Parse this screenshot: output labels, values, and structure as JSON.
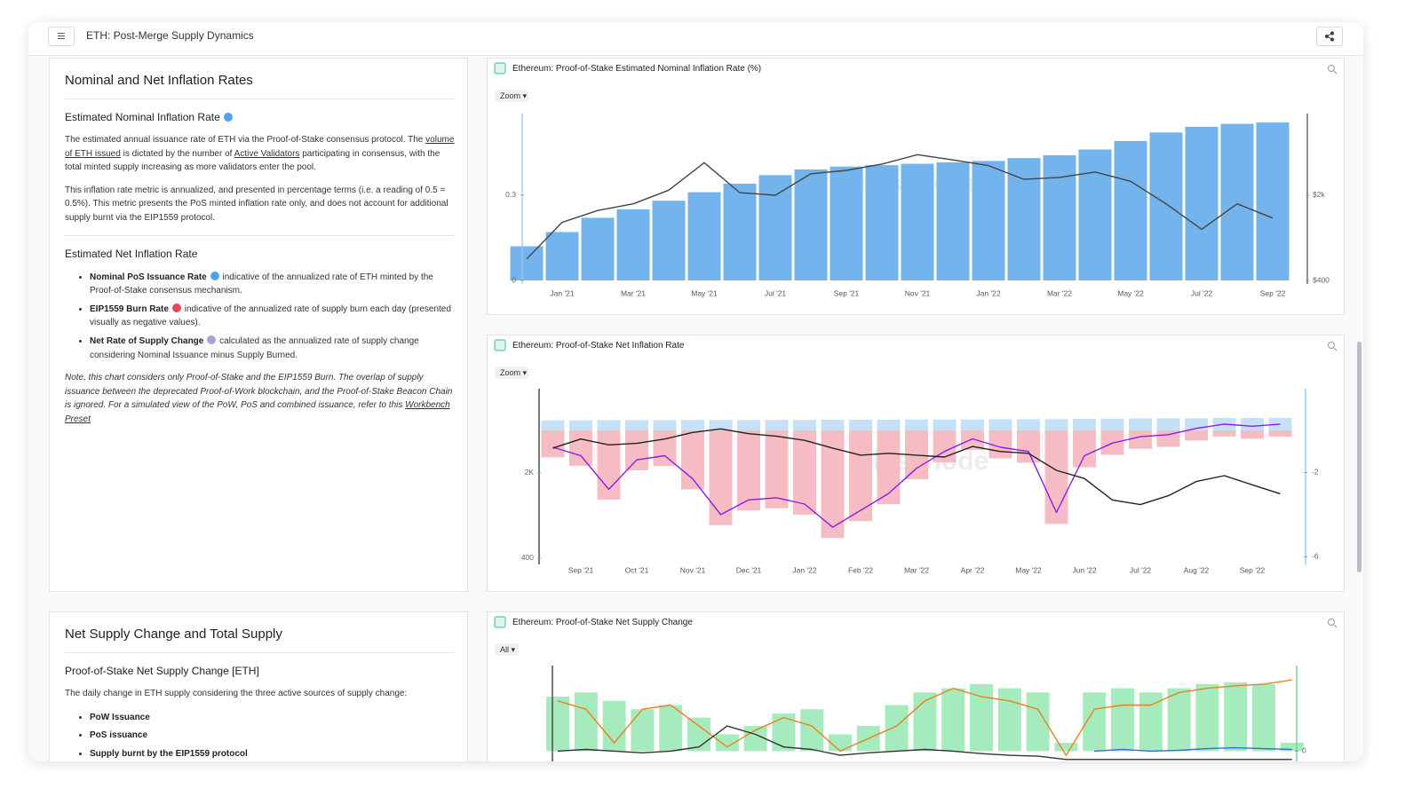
{
  "header": {
    "title": "ETH: Post-Merge Supply Dynamics"
  },
  "panels": [
    {
      "title": "Nominal and Net Inflation Rates",
      "blocks": [
        {
          "heading": "Estimated Nominal Inflation Rate",
          "dot": "#4ea4ee"
        },
        {
          "paragraph": [
            "The estimated annual issuance rate of ETH via the Proof-of-Stake consensus protocol. The ",
            {
              "text": "volume of ETH issued",
              "link": true
            },
            " is dictated by the number of ",
            {
              "text": "Active Validators",
              "link": true
            },
            " participating in consensus, with the total minted supply increasing as more validators enter the pool."
          ]
        },
        {
          "paragraph": [
            "This inflation rate metric is annualized, and presented in percentage terms (i.e. a reading of 0.5 = 0.5%). This metric presents the PoS minted inflation rate only, and does not account for additional supply burnt via the EIP1559 protocol."
          ]
        },
        {
          "heading": "Estimated Net Inflation Rate"
        },
        {
          "list": [
            {
              "label": "Nominal PoS Issuance Rate",
              "dot": "#4ea4ee",
              "text": " indicative of the annualized rate of ETH minted by the Proof-of-Stake consensus mechanism."
            },
            {
              "label": "EIP1559 Burn Rate",
              "dot": "#e8465a",
              "text": " indicative of the annualized rate of supply burn each day (presented visually as negative values)."
            },
            {
              "label": "Net Rate of Supply Change",
              "dot": "#b39ddb",
              "text": " calculated as the annualized rate of supply change considering Nominal Issuance minus Supply Burned."
            }
          ]
        },
        {
          "note": [
            "Note, this chart considers only Proof-of-Stake and the EIP1559 Burn. The overlap of supply issuance between the deprecated Proof-of-Work blockchain, and the Proof-of-Stake Beacon Chain is ignored. For a simulated view of the PoW, PoS and combined issuance, refer to this ",
            {
              "text": "Workbench Preset",
              "link": true
            }
          ]
        }
      ]
    },
    {
      "title": "Net Supply Change and Total Supply",
      "blocks": [
        {
          "heading": "Proof-of-Stake Net Supply Change [ETH]"
        },
        {
          "paragraph": [
            "The daily change in ETH supply considering the three active sources of supply change:"
          ]
        },
        {
          "list": [
            {
              "label": "PoW Issuance"
            },
            {
              "label": "PoS issuance"
            },
            {
              "label": "Supply burnt by the EIP1559 protocol"
            }
          ]
        }
      ]
    }
  ],
  "chart_data": [
    {
      "type": "combo",
      "title": "Ethereum: Proof-of-Stake Estimated Nominal Inflation Rate (%)",
      "button": "Zoom ▾",
      "watermark": "glassnode",
      "categories": [
        null,
        "Jan '21",
        null,
        "Mar '21",
        null,
        "May '21",
        null,
        "Jul '21",
        null,
        "Sep '21",
        null,
        "Nov '21",
        null,
        "Jan '22",
        null,
        "Mar '22",
        null,
        "May '22",
        null,
        "Jul '22",
        null,
        "Sep '22"
      ],
      "ylim": [
        0,
        0.58
      ],
      "yticks": [
        0,
        0.3
      ],
      "y2lim": [
        400,
        9040
      ],
      "y2log": true,
      "y2ticks": [
        {
          "value": 400,
          "label": "$400"
        },
        {
          "value": 2000,
          "label": "$2k"
        }
      ],
      "series": [
        {
          "type": "bar",
          "color": "#74b4ec",
          "values": [
            0.12,
            0.17,
            0.22,
            0.25,
            0.28,
            0.31,
            0.34,
            0.37,
            0.39,
            0.4,
            0.405,
            0.41,
            0.415,
            0.42,
            0.43,
            0.44,
            0.46,
            0.49,
            0.52,
            0.54,
            0.55,
            0.555
          ]
        },
        {
          "type": "line",
          "axis": "y2",
          "color": "#444444",
          "values": [
            600,
            1200,
            1500,
            1700,
            2200,
            3700,
            2100,
            2000,
            3000,
            3200,
            3600,
            4300,
            3900,
            3500,
            2700,
            2800,
            3100,
            2600,
            1700,
            1050,
            1700,
            1300
          ]
        }
      ]
    },
    {
      "type": "combo",
      "title": "Ethereum: Proof-of-Stake Net Inflation Rate",
      "button": "Zoom ▾",
      "watermark": "glassnode",
      "categories": [
        null,
        "Sep '21",
        null,
        "Oct '21",
        null,
        "Nov '21",
        null,
        "Dec '21",
        null,
        "Jan '22",
        null,
        "Feb '22",
        null,
        "Mar '22",
        null,
        "Apr '22",
        null,
        "May '22",
        null,
        "Jun '22",
        null,
        "Jul '22",
        null,
        "Aug '22",
        null,
        "Sep '22",
        null
      ],
      "ylim": [
        380,
        9500
      ],
      "ylog": true,
      "yticks": [
        400,
        {
          "value": 2000,
          "label": "2K"
        }
      ],
      "y2lim": [
        -6.2,
        1.9
      ],
      "y2ticks": [
        -6,
        -2
      ],
      "series": [
        {
          "type": "bar",
          "axis": "y2",
          "color": "#c6e1f7",
          "values": [
            0.48,
            0.48,
            0.49,
            0.49,
            0.49,
            0.5,
            0.5,
            0.5,
            0.5,
            0.5,
            0.51,
            0.51,
            0.51,
            0.52,
            0.52,
            0.52,
            0.53,
            0.53,
            0.54,
            0.55,
            0.56,
            0.57,
            0.58,
            0.58,
            0.59,
            0.59,
            0.6
          ]
        },
        {
          "type": "bar",
          "axis": "y2",
          "color": "#f5bcc3",
          "values": [
            -1.28,
            -1.68,
            -3.29,
            -1.89,
            -1.69,
            -2.8,
            -4.5,
            -3.8,
            -3.7,
            -4.0,
            -5.11,
            -4.31,
            -3.51,
            -2.32,
            -1.52,
            -0.92,
            -1.33,
            -1.53,
            -4.44,
            -1.75,
            -1.16,
            -0.87,
            -0.78,
            -0.48,
            -0.29,
            -0.39,
            -0.3
          ]
        },
        {
          "type": "line",
          "axis": "y2",
          "color": "#8a1ee6",
          "values": [
            -0.8,
            -1.2,
            -2.8,
            -1.4,
            -1.2,
            -2.3,
            -4.0,
            -3.3,
            -3.2,
            -3.5,
            -4.6,
            -3.8,
            -3.0,
            -1.8,
            -1.0,
            -0.4,
            -0.8,
            -1.0,
            -3.9,
            -1.2,
            -0.6,
            -0.3,
            -0.2,
            0.1,
            0.3,
            0.2,
            0.3
          ]
        },
        {
          "type": "line",
          "color": "#222222",
          "values": [
            3200,
            3800,
            3400,
            3500,
            3800,
            4300,
            4600,
            4200,
            4000,
            3700,
            3200,
            2800,
            2900,
            2800,
            2700,
            3300,
            3000,
            2900,
            2100,
            1800,
            1200,
            1100,
            1300,
            1700,
            1900,
            1600,
            1350
          ]
        }
      ]
    },
    {
      "type": "combo",
      "title": "Ethereum: Proof-of-Stake Net Supply Change",
      "button": "All ▾",
      "y2lim": [
        -0.25,
        1
      ],
      "y2ticks": [
        0
      ],
      "series": [
        {
          "type": "bar",
          "axis": "y2",
          "color": "#a6ebbd",
          "values": [
            0.65,
            0.7,
            0.6,
            0.5,
            0.55,
            0.4,
            0.2,
            0.3,
            0.45,
            0.5,
            0.2,
            0.3,
            0.55,
            0.7,
            0.75,
            0.8,
            0.75,
            0.7,
            0.1,
            0.7,
            0.75,
            0.7,
            0.75,
            0.8,
            0.82,
            0.8,
            0.1
          ]
        },
        {
          "type": "line",
          "axis": "y2",
          "color": "#e8821e",
          "values": [
            0.6,
            0.5,
            0.1,
            0.5,
            0.55,
            0.3,
            0.05,
            0.25,
            0.4,
            0.3,
            0,
            0.15,
            0.3,
            0.6,
            0.75,
            0.65,
            0.6,
            0.5,
            -0.05,
            0.5,
            0.55,
            0.55,
            0.7,
            0.75,
            0.78,
            0.8,
            0.85
          ]
        },
        {
          "type": "line",
          "axis": "y2",
          "color": "#333333",
          "values": [
            0,
            0.02,
            0,
            -0.02,
            0,
            0.05,
            0.3,
            0.2,
            0.05,
            0.02,
            -0.05,
            -0.02,
            0,
            0.02,
            0,
            -0.03,
            -0.05,
            -0.06,
            -0.1,
            -0.1,
            -0.1,
            -0.1,
            -0.1,
            -0.1,
            -0.1,
            -0.1,
            -0.1
          ]
        },
        {
          "type": "line",
          "axis": "y2",
          "color": "#2f6fe0",
          "values": [
            null,
            null,
            null,
            null,
            null,
            null,
            null,
            null,
            null,
            null,
            null,
            null,
            null,
            null,
            null,
            null,
            null,
            null,
            null,
            0,
            0.02,
            0,
            0.01,
            0.03,
            0.04,
            0.03,
            0.02
          ]
        }
      ]
    }
  ]
}
